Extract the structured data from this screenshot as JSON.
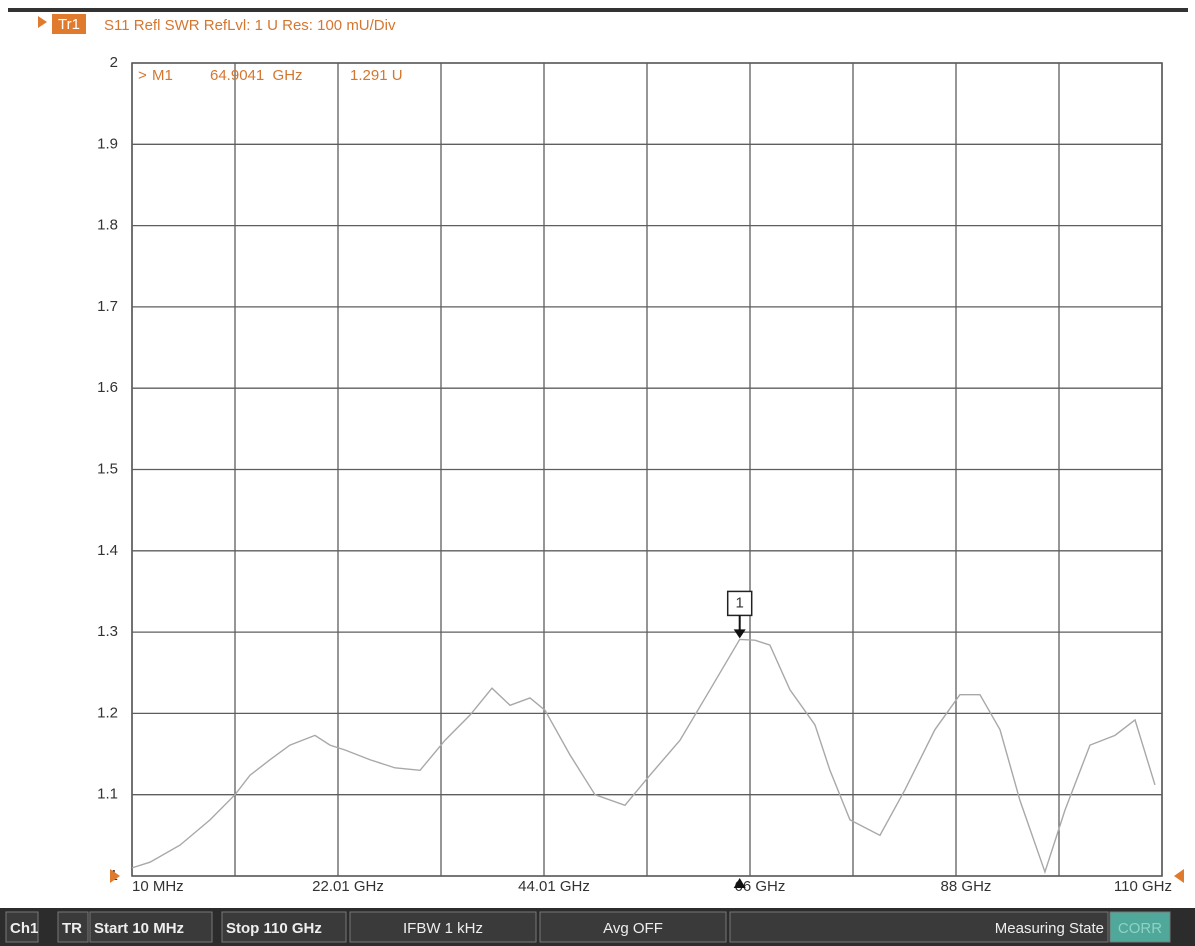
{
  "chart_data": {
    "type": "line",
    "title": "S11 Refl SWR RefLvl: 1  U Res:  100 mU/Div",
    "series": [
      {
        "name": "Tr1",
        "color": "#a8a8a8",
        "values": [
          1.01,
          1.017,
          1.038,
          1.069,
          1.1,
          1.124,
          1.143,
          1.161,
          1.173,
          1.161,
          1.155,
          1.143,
          1.133,
          1.13,
          1.167,
          1.198,
          1.231,
          1.21,
          1.219,
          1.204,
          1.149,
          1.1,
          1.087,
          1.124,
          1.167,
          1.229,
          1.291,
          1.29,
          1.284,
          1.229,
          1.186,
          1.13,
          1.069,
          1.05,
          1.106,
          1.18,
          1.223,
          1.223,
          1.18,
          1.093,
          1.005,
          1.081,
          1.161,
          1.173,
          1.192,
          1.112
        ]
      }
    ],
    "x": [
      0.01,
      1.93,
      5.14,
      8.34,
      11.01,
      12.61,
      14.75,
      16.88,
      19.55,
      21.15,
      22.76,
      25.43,
      28.1,
      30.77,
      33.44,
      36.11,
      38.45,
      40.38,
      42.51,
      44.11,
      46.78,
      49.45,
      52.65,
      55.32,
      58.53,
      61.73,
      64.9041,
      66.53,
      68.13,
      70.27,
      72.94,
      74.54,
      76.68,
      79.88,
      82.55,
      85.75,
      88.42,
      90.56,
      92.7,
      94.83,
      97.5,
      99.64,
      102.31,
      104.98,
      107.12,
      109.25
    ],
    "xlim": [
      0.01,
      110
    ],
    "xticks": [
      {
        "value": 0.01,
        "label": "10 MHz"
      },
      {
        "value": 22.01,
        "label": "22.01 GHz"
      },
      {
        "value": 44.01,
        "label": "44.01 GHz"
      },
      {
        "value": 66,
        "label": "66 GHz"
      },
      {
        "value": 88,
        "label": "88 GHz"
      },
      {
        "value": 110,
        "label": "110 GHz"
      }
    ],
    "x_divisions": 10,
    "ylim": [
      1,
      2
    ],
    "yticks": [
      1,
      1.1,
      1.2,
      1.3,
      1.4,
      1.5,
      1.6,
      1.7,
      1.8,
      1.9,
      2
    ],
    "grid": true,
    "marker": {
      "symbol": ">",
      "name": "M1",
      "box_label": "1",
      "x": 64.9041,
      "y": 1.291,
      "x_label": "64.9041  GHz",
      "y_label": "1.291 U"
    }
  },
  "status_bar": [
    "Ch1",
    "TR",
    "Start 10 MHz",
    "Stop 110 GHz",
    "IFBW 1 kHz",
    "Avg OFF",
    "Measuring State",
    "CORR"
  ]
}
